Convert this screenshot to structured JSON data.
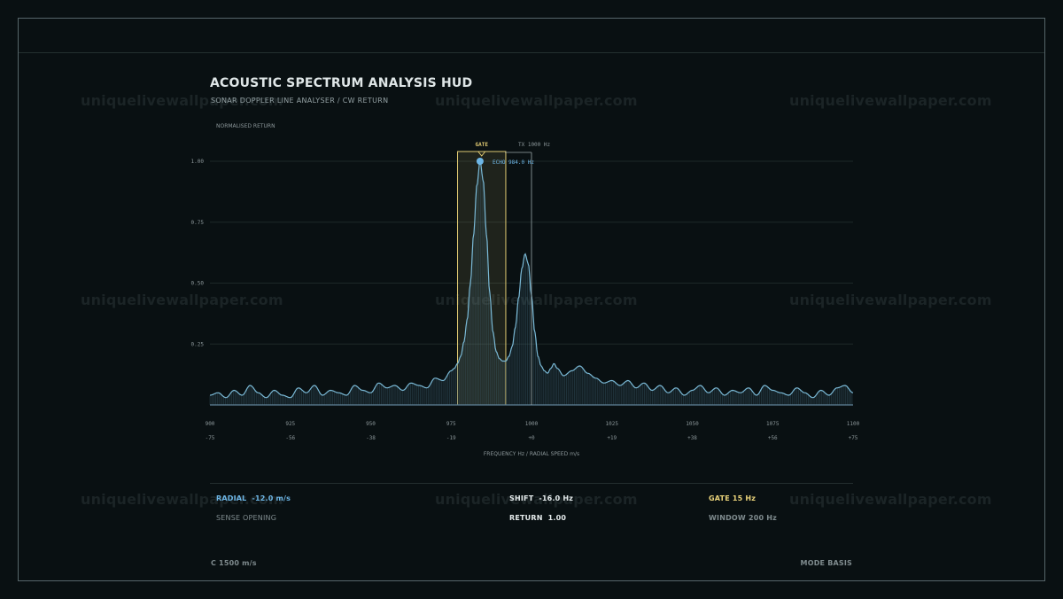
{
  "header": {
    "title": "ACOUSTIC SPECTRUM ANALYSIS HUD",
    "subtitle": "SONAR DOPPLER LINE ANALYSER / CW RETURN"
  },
  "watermark": "uniquelivewallpaper.com",
  "chart_data": {
    "type": "area",
    "ylabel": "NORMALISED RETURN",
    "xlabel": "FREQUENCY Hz / RADIAL SPEED m/s",
    "xlim": [
      900,
      1100
    ],
    "ylim": [
      0,
      1.0
    ],
    "x_ticks": [
      "900",
      "925",
      "950",
      "975",
      "1000",
      "1025",
      "1050",
      "1075",
      "1100"
    ],
    "speed_ticks": [
      "-75",
      "-56",
      "-38",
      "-19",
      "+0",
      "+19",
      "+38",
      "+56",
      "+75"
    ],
    "y_ticks": [
      "1.00",
      "0.75",
      "0.50",
      "0.25"
    ],
    "series": [
      {
        "x": [
          900,
          902.5,
          905,
          907.5,
          910,
          912.5,
          915,
          917.5,
          920,
          922.5,
          925,
          927.5,
          930,
          932.5,
          935,
          937.5,
          940,
          942.5,
          945,
          947.5,
          950,
          952.5,
          955,
          957.5,
          960,
          962.5,
          965,
          967.5,
          970,
          972.5,
          975,
          976,
          977,
          978,
          979,
          980,
          981,
          982,
          983,
          984,
          985,
          986,
          987,
          988,
          989,
          990,
          991,
          992,
          993,
          994,
          995,
          996,
          997,
          998,
          999,
          1000,
          1001,
          1002,
          1003,
          1004,
          1005,
          1006,
          1007,
          1008,
          1010,
          1012.5,
          1015,
          1017.5,
          1020,
          1022.5,
          1025,
          1027.5,
          1030,
          1032.5,
          1035,
          1037.5,
          1040,
          1042.5,
          1045,
          1047.5,
          1050,
          1052.5,
          1055,
          1057.5,
          1060,
          1062.5,
          1065,
          1067.5,
          1070,
          1072.5,
          1075,
          1077.5,
          1080,
          1082.5,
          1085,
          1087.5,
          1090,
          1092.5,
          1095,
          1097.5,
          1100
        ],
        "y": [
          0.04,
          0.05,
          0.03,
          0.06,
          0.04,
          0.08,
          0.05,
          0.03,
          0.06,
          0.04,
          0.03,
          0.07,
          0.05,
          0.08,
          0.04,
          0.06,
          0.05,
          0.04,
          0.08,
          0.06,
          0.05,
          0.09,
          0.07,
          0.08,
          0.06,
          0.09,
          0.08,
          0.07,
          0.11,
          0.1,
          0.14,
          0.15,
          0.17,
          0.2,
          0.26,
          0.35,
          0.5,
          0.7,
          0.9,
          1.0,
          0.92,
          0.7,
          0.46,
          0.3,
          0.22,
          0.19,
          0.18,
          0.18,
          0.2,
          0.24,
          0.32,
          0.44,
          0.56,
          0.62,
          0.58,
          0.45,
          0.3,
          0.2,
          0.16,
          0.14,
          0.13,
          0.15,
          0.17,
          0.15,
          0.12,
          0.14,
          0.16,
          0.13,
          0.11,
          0.09,
          0.1,
          0.08,
          0.1,
          0.07,
          0.09,
          0.06,
          0.08,
          0.05,
          0.07,
          0.04,
          0.06,
          0.08,
          0.05,
          0.07,
          0.04,
          0.06,
          0.05,
          0.07,
          0.04,
          0.08,
          0.06,
          0.05,
          0.04,
          0.07,
          0.05,
          0.03,
          0.06,
          0.04,
          0.07,
          0.08,
          0.05
        ]
      }
    ],
    "gate": {
      "label": "GATE",
      "from": 977,
      "to": 992
    },
    "peak": {
      "x": 984,
      "y": 1.0,
      "label": "ECHO 984.0 Hz"
    },
    "tx_line": {
      "x": 1000,
      "label": "TX 1000 Hz"
    },
    "grid": true,
    "colors": {
      "curve": "#7ab9d6",
      "peak_marker": "#6db6e6",
      "gate": "#e1cb73",
      "grid": "#1d2828",
      "baseline": "#5f8196"
    }
  },
  "readouts": {
    "radial": {
      "label": "RADIAL",
      "value": "-12.0 m/s"
    },
    "sense": "SENSE OPENING",
    "shift": {
      "label": "SHIFT",
      "value": "-16.0 Hz"
    },
    "return": {
      "label": "RETURN",
      "value": "1.00"
    },
    "gate": {
      "label": "GATE",
      "value": "15 Hz"
    },
    "window": {
      "label": "WINDOW",
      "value": "200 Hz"
    }
  },
  "footer": {
    "sound_speed": "C 1500 m/s",
    "mode": "MODE BASIS"
  }
}
